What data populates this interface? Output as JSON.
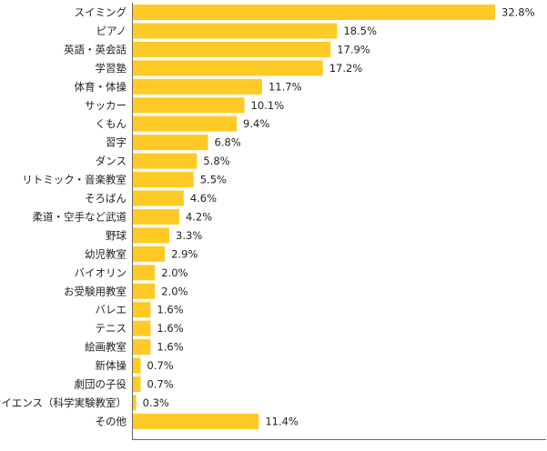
{
  "chart_data": {
    "type": "bar",
    "orientation": "horizontal",
    "unit": "%",
    "categories": [
      "スイミング",
      "ピアノ",
      "英語・英会話",
      "学習塾",
      "体育・体操",
      "サッカー",
      "くもん",
      "習字",
      "ダンス",
      "リトミック・音楽教室",
      "そろばん",
      "柔道・空手など武道",
      "野球",
      "幼児教室",
      "バイオリン",
      "お受験用教室",
      "バレエ",
      "テニス",
      "絵画教室",
      "新体操",
      "劇団の子役",
      "サイエンス（科学実験教室）",
      "その他"
    ],
    "values": [
      32.8,
      18.5,
      17.9,
      17.2,
      11.7,
      10.1,
      9.4,
      6.8,
      5.8,
      5.5,
      4.6,
      4.2,
      3.3,
      2.9,
      2.0,
      2.0,
      1.6,
      1.6,
      1.6,
      0.7,
      0.7,
      0.3,
      11.4
    ],
    "value_labels": [
      "32.8%",
      "18.5%",
      "17.9%",
      "17.2%",
      "11.7%",
      "10.1%",
      "9.4%",
      "6.8%",
      "5.8%",
      "5.5%",
      "4.6%",
      "4.2%",
      "3.3%",
      "2.9%",
      "2.0%",
      "2.0%",
      "1.6%",
      "1.6%",
      "1.6%",
      "0.7%",
      "0.7%",
      "0.3%",
      "11.4%"
    ],
    "xlim": [
      0,
      32.8
    ],
    "grid": false,
    "legend": "none",
    "bar_color": "#FFC926"
  }
}
